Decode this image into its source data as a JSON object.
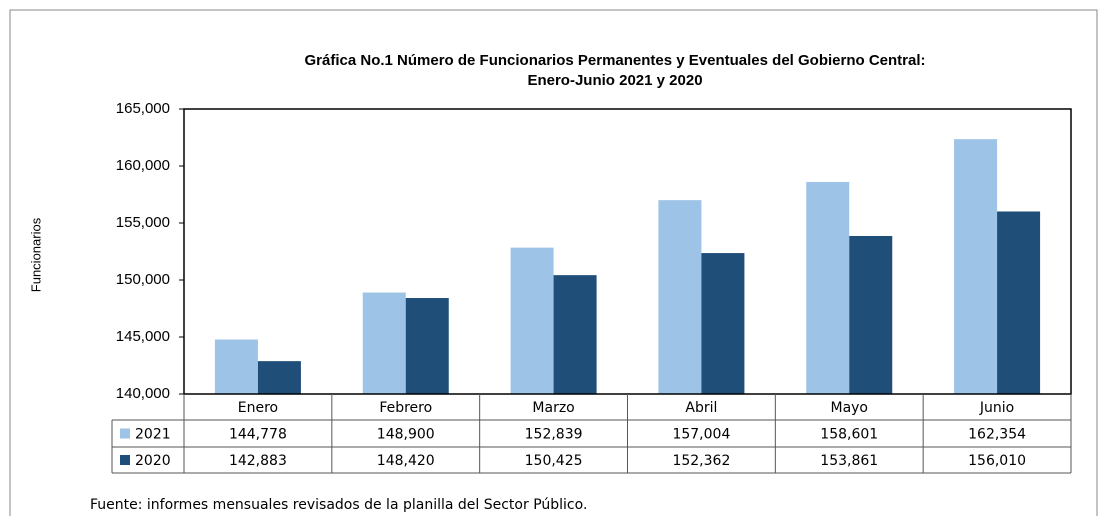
{
  "chart_data": {
    "type": "bar",
    "title": "Gráfica No.1 Número de Funcionarios  Permanentes y Eventuales del Gobierno Central:",
    "subtitle": "Enero-Junio 2021 y 2020",
    "ylabel": "Funcionarios",
    "source": "Fuente: informes mensuales revisados de la planilla del Sector Público.",
    "categories": [
      "Enero",
      "Febrero",
      "Marzo",
      "Abril",
      "Mayo",
      "Junio"
    ],
    "series": [
      {
        "name": "2021",
        "color": "#9dc3e6",
        "values": [
          144778,
          148900,
          152839,
          157004,
          158601,
          162354
        ],
        "value_labels": [
          "144,778",
          "148,900",
          "152,839",
          "157,004",
          "158,601",
          "162,354"
        ]
      },
      {
        "name": "2020",
        "color": "#1f4e79",
        "values": [
          142883,
          148420,
          150425,
          152362,
          153861,
          156010
        ],
        "value_labels": [
          "142,883",
          "148,420",
          "150,425",
          "152,362",
          "153,861",
          "156,010"
        ]
      }
    ],
    "ylim": [
      140000,
      165000
    ],
    "yticks": [
      {
        "value": 140000,
        "label": "140,000"
      },
      {
        "value": 145000,
        "label": "145,000"
      },
      {
        "value": 150000,
        "label": "150,000"
      },
      {
        "value": 155000,
        "label": "155,000"
      },
      {
        "value": 160000,
        "label": "160,000"
      },
      {
        "value": 165000,
        "label": "165,000"
      }
    ],
    "grid": false
  }
}
